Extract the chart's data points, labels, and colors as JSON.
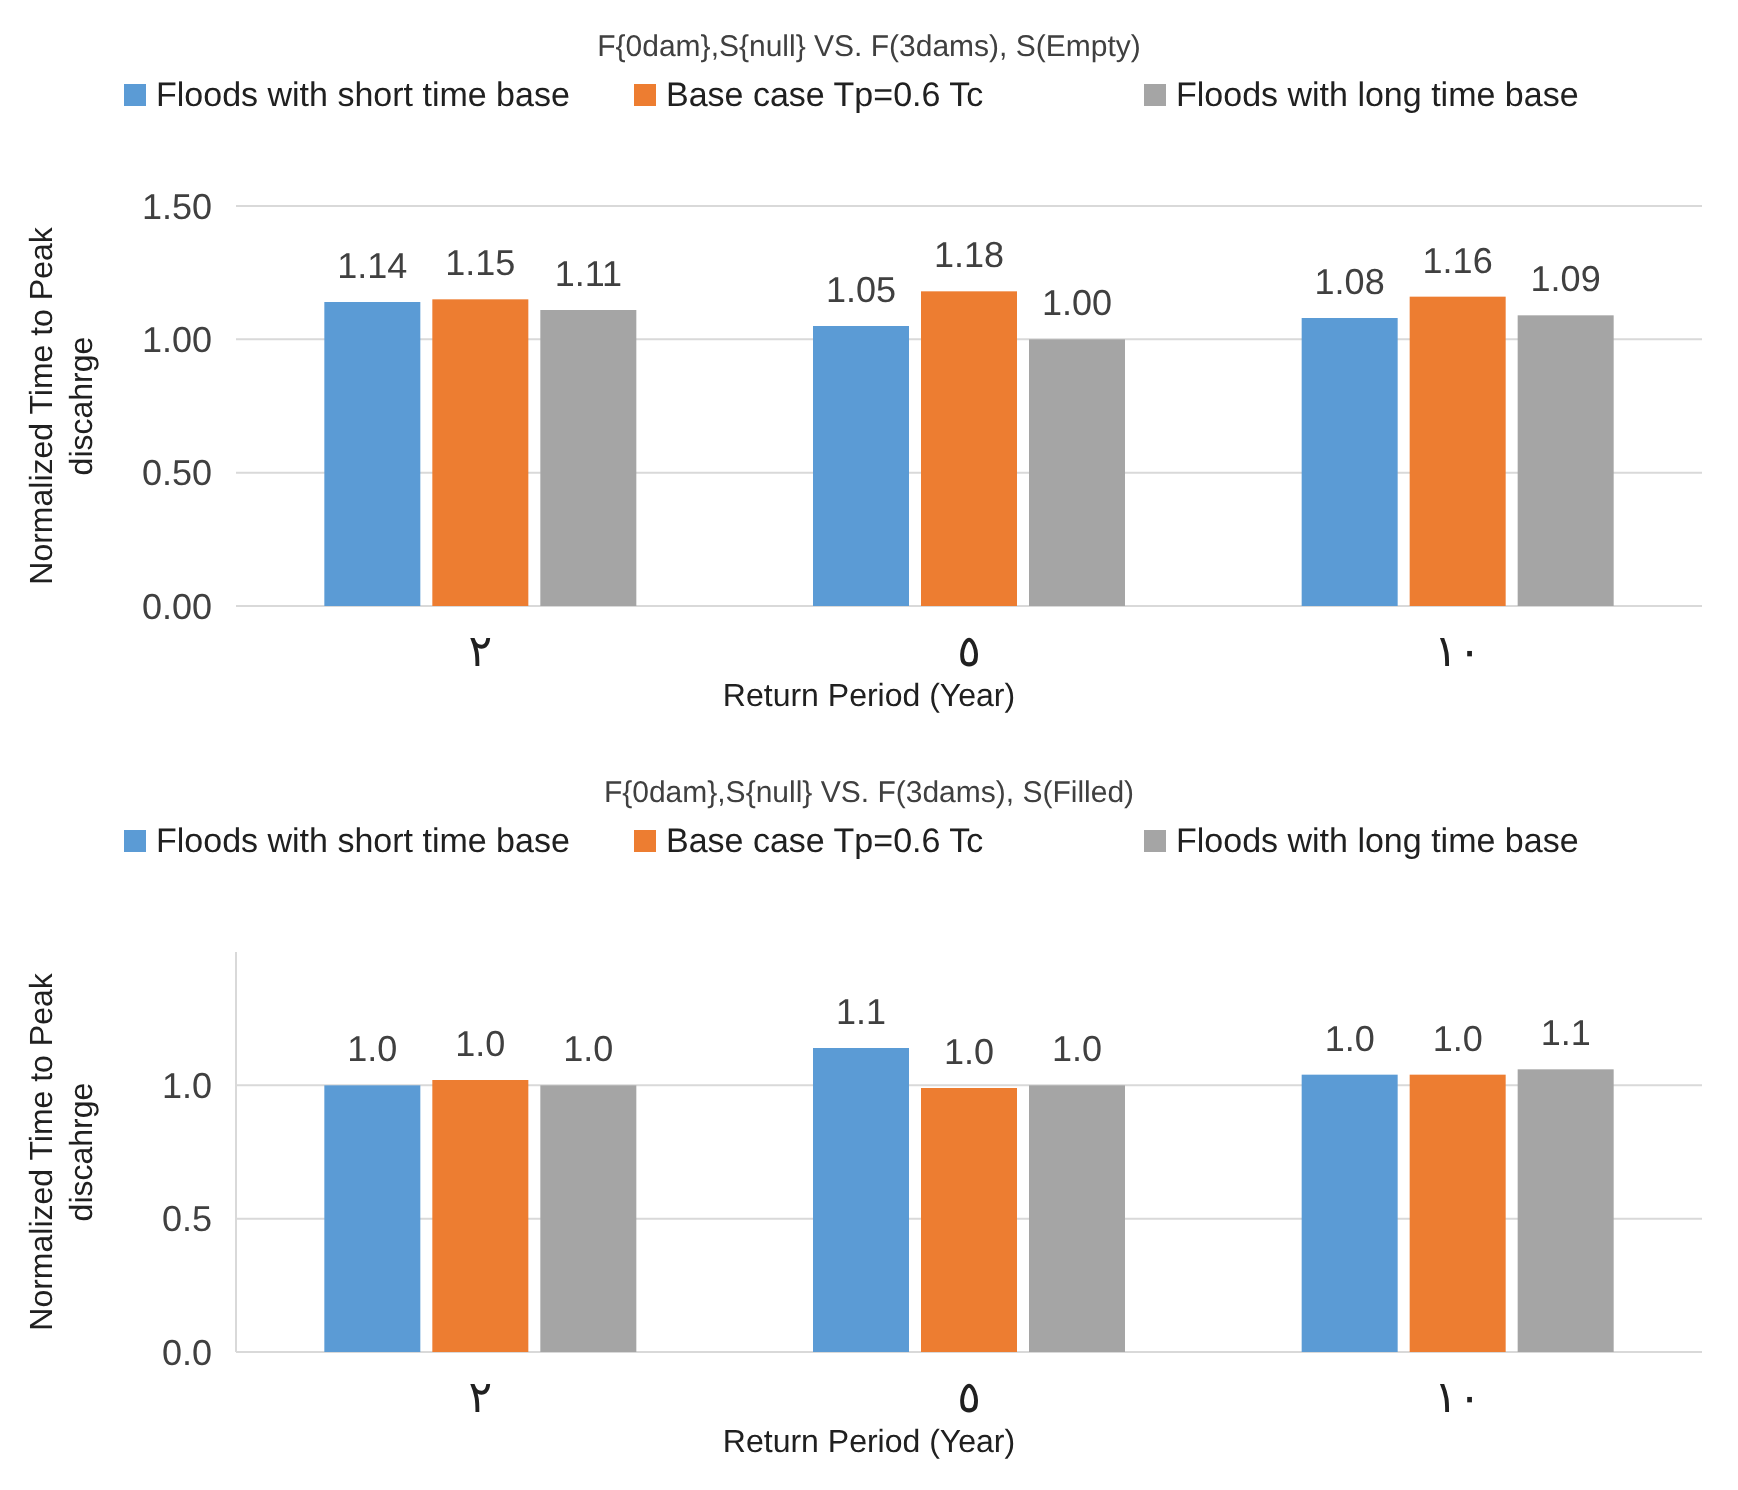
{
  "chart_data": [
    {
      "type": "bar",
      "title": "F{0dam},S{null}  VS.    F(3dams), S(Empty)",
      "xlabel": "Return Period (Year)",
      "ylabel": "Normalized Time to Peak discahrge",
      "categories": [
        "٢",
        "٥",
        "١٠"
      ],
      "ylim": [
        0,
        1.5
      ],
      "yticks": [
        {
          "value": 0,
          "label": "0.00"
        },
        {
          "value": 0.5,
          "label": "0.50"
        },
        {
          "value": 1,
          "label": "1.00"
        },
        {
          "value": 1.5,
          "label": "1.50"
        }
      ],
      "grid": "y",
      "legend": "top",
      "series": [
        {
          "name": "Floods with short time base",
          "color": "#5b9bd5",
          "values": [
            1.14,
            1.05,
            1.08
          ],
          "value_labels": [
            "1.14",
            "1.05",
            "1.08"
          ]
        },
        {
          "name": "Base case Tp=0.6 Tc",
          "color": "#ed7d31",
          "values": [
            1.15,
            1.18,
            1.16
          ],
          "value_labels": [
            "1.15",
            "1.18",
            "1.16"
          ]
        },
        {
          "name": "Floods with long time base",
          "color": "#a5a5a5",
          "values": [
            1.11,
            1.0,
            1.09
          ],
          "value_labels": [
            "1.11",
            "1.00",
            "1.09"
          ]
        }
      ]
    },
    {
      "type": "bar",
      "title": "F{0dam},S{null}  VS.    F(3dams), S(Filled)",
      "xlabel": "Return Period (Year)",
      "ylabel": "Normalized Time to Peak discahrge",
      "categories": [
        "٢",
        "٥",
        "١٠"
      ],
      "ylim": [
        0,
        1.5
      ],
      "yticks": [
        {
          "value": 0,
          "label": "0.0"
        },
        {
          "value": 0.5,
          "label": "0.5"
        },
        {
          "value": 1,
          "label": "1.0"
        }
      ],
      "grid": "y",
      "legend": "top",
      "series": [
        {
          "name": "Floods with short time base",
          "color": "#5b9bd5",
          "values": [
            1.0,
            1.14,
            1.04
          ],
          "value_labels": [
            "1.0",
            "1.1",
            "1.0"
          ]
        },
        {
          "name": "Base case Tp=0.6 Tc",
          "color": "#ed7d31",
          "values": [
            1.02,
            0.99,
            1.04
          ],
          "value_labels": [
            "1.0",
            "1.0",
            "1.0"
          ]
        },
        {
          "name": "Floods with long time base",
          "color": "#a5a5a5",
          "values": [
            1.0,
            1.0,
            1.06
          ],
          "value_labels": [
            "1.0",
            "1.0",
            "1.1"
          ]
        }
      ]
    }
  ]
}
